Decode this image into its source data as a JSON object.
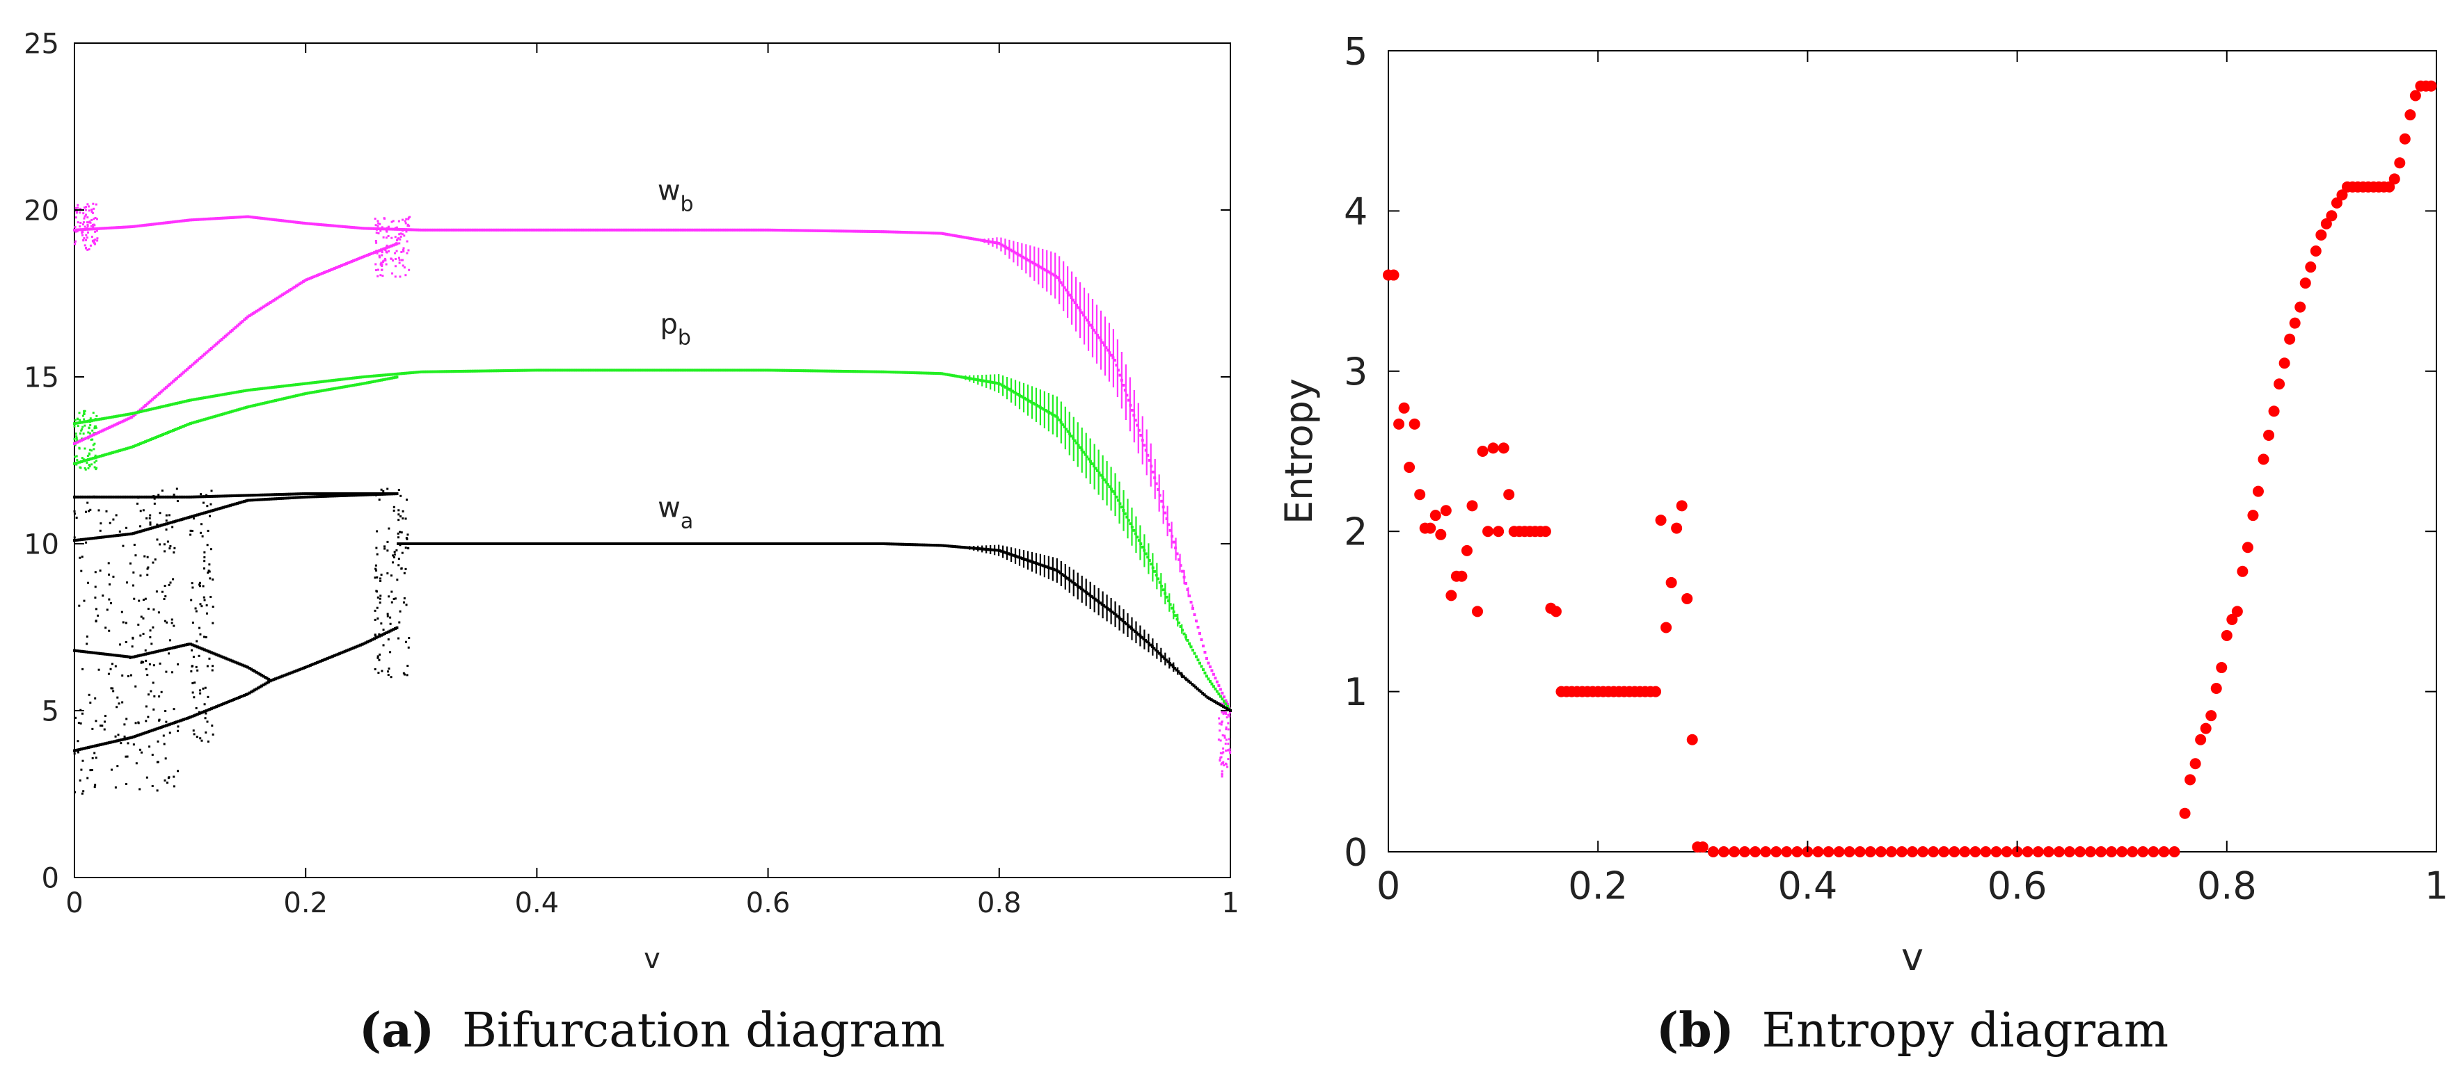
{
  "panel_a": {
    "caption_letter": "(a)",
    "caption_text": "Bifurcation diagram",
    "chart_data": {
      "type": "scatter",
      "title": "",
      "xlabel": "v",
      "ylabel": "",
      "xlim": [
        0,
        1
      ],
      "ylim": [
        0,
        25
      ],
      "xticks": [
        0,
        0.2,
        0.4,
        0.6,
        0.8,
        1
      ],
      "xtick_labels": [
        "0",
        "0.2",
        "0.4",
        "0.6",
        "0.8",
        "1"
      ],
      "yticks": [
        0,
        5,
        10,
        15,
        20,
        25
      ],
      "ytick_labels": [
        "0",
        "5",
        "10",
        "15",
        "20",
        "25"
      ],
      "grid": false,
      "series": [
        {
          "name": "w_b",
          "label_main": "w",
          "label_sub": "b",
          "color": "#ff33ff",
          "label_at": [
            0.52,
            20.3
          ],
          "branches": [
            {
              "x": [
                0,
                0.05,
                0.1,
                0.15,
                0.2,
                0.25,
                0.3,
                0.4,
                0.5,
                0.6,
                0.7,
                0.75,
                0.8,
                0.85,
                0.9,
                0.93,
                0.96,
                0.98,
                1.0
              ],
              "y": [
                19.4,
                19.5,
                19.7,
                19.8,
                19.6,
                19.45,
                19.4,
                19.4,
                19.4,
                19.4,
                19.35,
                19.3,
                19.0,
                18.0,
                15.5,
                12.5,
                9.0,
                6.5,
                5.0
              ]
            },
            {
              "x": [
                0,
                0.05,
                0.1,
                0.15,
                0.2,
                0.25,
                0.28
              ],
              "y": [
                13.0,
                13.8,
                15.3,
                16.8,
                17.9,
                18.6,
                19.0
              ]
            }
          ],
          "spread_from": 0.78,
          "spread_max": 1.3
        },
        {
          "name": "p_b",
          "label_main": "p",
          "label_sub": "b",
          "color": "#22ee22",
          "label_at": [
            0.52,
            16.3
          ],
          "branches": [
            {
              "x": [
                0,
                0.05,
                0.1,
                0.15,
                0.2,
                0.25,
                0.3,
                0.4,
                0.5,
                0.6,
                0.7,
                0.75,
                0.8,
                0.85,
                0.9,
                0.93,
                0.96,
                0.98,
                1.0
              ],
              "y": [
                13.6,
                13.9,
                14.3,
                14.6,
                14.8,
                15.0,
                15.15,
                15.2,
                15.2,
                15.2,
                15.15,
                15.1,
                14.8,
                13.8,
                11.5,
                9.5,
                7.3,
                6.0,
                5.0
              ]
            },
            {
              "x": [
                0,
                0.05,
                0.1,
                0.15,
                0.2,
                0.25,
                0.28
              ],
              "y": [
                12.4,
                12.9,
                13.6,
                14.1,
                14.5,
                14.8,
                15.0
              ]
            }
          ],
          "spread_from": 0.76,
          "spread_max": 1.0
        },
        {
          "name": "w_a",
          "label_main": "w",
          "label_sub": "a",
          "color": "#000000",
          "label_at": [
            0.52,
            10.8
          ],
          "branches": [
            {
              "x": [
                0,
                0.1,
                0.2,
                0.28
              ],
              "y": [
                11.4,
                11.4,
                11.5,
                11.5
              ]
            },
            {
              "x": [
                0,
                0.05,
                0.1,
                0.15,
                0.2,
                0.28
              ],
              "y": [
                10.1,
                10.3,
                10.8,
                11.3,
                11.4,
                11.5
              ]
            },
            {
              "x": [
                0,
                0.05,
                0.1,
                0.15,
                0.17,
                0.2,
                0.25,
                0.28
              ],
              "y": [
                3.8,
                4.2,
                4.8,
                5.5,
                5.9,
                6.3,
                7.0,
                7.5
              ]
            },
            {
              "x": [
                0,
                0.05,
                0.1,
                0.15,
                0.17
              ],
              "y": [
                6.8,
                6.6,
                7.0,
                6.3,
                5.9
              ]
            },
            {
              "x": [
                0.28,
                0.4,
                0.5,
                0.6,
                0.7,
                0.75,
                0.8,
                0.85,
                0.9,
                0.93,
                0.96,
                0.98,
                1.0
              ],
              "y": [
                10.0,
                10.0,
                10.0,
                10.0,
                10.0,
                9.95,
                9.8,
                9.2,
                7.9,
                7.0,
                6.0,
                5.4,
                5.0
              ]
            }
          ],
          "spread_from": 0.76,
          "spread_max": 0.6
        }
      ],
      "chaotic_bands": [
        {
          "x_from": 0.0,
          "x_to": 0.09,
          "y_min": 2.5,
          "y_max": 11.7,
          "color": "#000000"
        },
        {
          "x_from": 0.1,
          "x_to": 0.12,
          "y_min": 4.0,
          "y_max": 11.6,
          "color": "#000000"
        },
        {
          "x_from": 0.26,
          "x_to": 0.29,
          "y_min": 6.0,
          "y_max": 11.8,
          "color": "#000000"
        },
        {
          "x_from": 0.0,
          "x_to": 0.02,
          "y_min": 12.2,
          "y_max": 14.0,
          "color": "#22ee22"
        },
        {
          "x_from": 0.0,
          "x_to": 0.02,
          "y_min": 18.8,
          "y_max": 20.2,
          "color": "#ff33ff"
        },
        {
          "x_from": 0.26,
          "x_to": 0.29,
          "y_min": 18.0,
          "y_max": 19.8,
          "color": "#ff33ff"
        },
        {
          "x_from": 0.99,
          "x_to": 1.0,
          "y_min": 3.0,
          "y_max": 5.3,
          "color": "#ff33ff"
        }
      ]
    }
  },
  "panel_b": {
    "caption_letter": "(b)",
    "caption_text": "Entropy diagram",
    "chart_data": {
      "type": "scatter",
      "title": "",
      "xlabel": "v",
      "ylabel": "Entropy",
      "xlim": [
        0,
        1
      ],
      "ylim": [
        0,
        5
      ],
      "xticks": [
        0,
        0.2,
        0.4,
        0.6,
        0.8,
        1
      ],
      "xtick_labels": [
        "0",
        "0.2",
        "0.4",
        "0.6",
        "0.8",
        "1"
      ],
      "yticks": [
        0,
        1,
        2,
        3,
        4,
        5
      ],
      "ytick_labels": [
        "0",
        "1",
        "2",
        "3",
        "4",
        "5"
      ],
      "grid": false,
      "color": "#ff0000",
      "points": [
        [
          0.0,
          3.6
        ],
        [
          0.005,
          3.6
        ],
        [
          0.01,
          2.67
        ],
        [
          0.015,
          2.77
        ],
        [
          0.02,
          2.4
        ],
        [
          0.025,
          2.67
        ],
        [
          0.03,
          2.23
        ],
        [
          0.035,
          2.02
        ],
        [
          0.04,
          2.02
        ],
        [
          0.045,
          2.1
        ],
        [
          0.05,
          1.98
        ],
        [
          0.055,
          2.13
        ],
        [
          0.06,
          1.6
        ],
        [
          0.065,
          1.72
        ],
        [
          0.07,
          1.72
        ],
        [
          0.075,
          1.88
        ],
        [
          0.08,
          2.16
        ],
        [
          0.085,
          1.5
        ],
        [
          0.09,
          2.5
        ],
        [
          0.095,
          2.0
        ],
        [
          0.1,
          2.52
        ],
        [
          0.105,
          2.0
        ],
        [
          0.11,
          2.52
        ],
        [
          0.115,
          2.23
        ],
        [
          0.12,
          2.0
        ],
        [
          0.125,
          2.0
        ],
        [
          0.13,
          2.0
        ],
        [
          0.135,
          2.0
        ],
        [
          0.14,
          2.0
        ],
        [
          0.145,
          2.0
        ],
        [
          0.15,
          2.0
        ],
        [
          0.155,
          1.52
        ],
        [
          0.16,
          1.5
        ],
        [
          0.165,
          1.0
        ],
        [
          0.17,
          1.0
        ],
        [
          0.175,
          1.0
        ],
        [
          0.18,
          1.0
        ],
        [
          0.185,
          1.0
        ],
        [
          0.19,
          1.0
        ],
        [
          0.195,
          1.0
        ],
        [
          0.2,
          1.0
        ],
        [
          0.205,
          1.0
        ],
        [
          0.21,
          1.0
        ],
        [
          0.215,
          1.0
        ],
        [
          0.22,
          1.0
        ],
        [
          0.225,
          1.0
        ],
        [
          0.23,
          1.0
        ],
        [
          0.235,
          1.0
        ],
        [
          0.24,
          1.0
        ],
        [
          0.245,
          1.0
        ],
        [
          0.25,
          1.0
        ],
        [
          0.255,
          1.0
        ],
        [
          0.26,
          2.07
        ],
        [
          0.265,
          1.4
        ],
        [
          0.27,
          1.68
        ],
        [
          0.275,
          2.02
        ],
        [
          0.28,
          2.16
        ],
        [
          0.285,
          1.58
        ],
        [
          0.29,
          0.7
        ],
        [
          0.295,
          0.03
        ],
        [
          0.3,
          0.03
        ],
        [
          0.31,
          0.0
        ],
        [
          0.32,
          0.0
        ],
        [
          0.33,
          0.0
        ],
        [
          0.34,
          0.0
        ],
        [
          0.35,
          0.0
        ],
        [
          0.36,
          0.0
        ],
        [
          0.37,
          0.0
        ],
        [
          0.38,
          0.0
        ],
        [
          0.39,
          0.0
        ],
        [
          0.4,
          0.0
        ],
        [
          0.41,
          0.0
        ],
        [
          0.42,
          0.0
        ],
        [
          0.43,
          0.0
        ],
        [
          0.44,
          0.0
        ],
        [
          0.45,
          0.0
        ],
        [
          0.46,
          0.0
        ],
        [
          0.47,
          0.0
        ],
        [
          0.48,
          0.0
        ],
        [
          0.49,
          0.0
        ],
        [
          0.5,
          0.0
        ],
        [
          0.51,
          0.0
        ],
        [
          0.52,
          0.0
        ],
        [
          0.53,
          0.0
        ],
        [
          0.54,
          0.0
        ],
        [
          0.55,
          0.0
        ],
        [
          0.56,
          0.0
        ],
        [
          0.57,
          0.0
        ],
        [
          0.58,
          0.0
        ],
        [
          0.59,
          0.0
        ],
        [
          0.6,
          0.0
        ],
        [
          0.61,
          0.0
        ],
        [
          0.62,
          0.0
        ],
        [
          0.63,
          0.0
        ],
        [
          0.64,
          0.0
        ],
        [
          0.65,
          0.0
        ],
        [
          0.66,
          0.0
        ],
        [
          0.67,
          0.0
        ],
        [
          0.68,
          0.0
        ],
        [
          0.69,
          0.0
        ],
        [
          0.7,
          0.0
        ],
        [
          0.71,
          0.0
        ],
        [
          0.72,
          0.0
        ],
        [
          0.73,
          0.0
        ],
        [
          0.74,
          0.0
        ],
        [
          0.75,
          0.0
        ],
        [
          0.76,
          0.24
        ],
        [
          0.765,
          0.45
        ],
        [
          0.77,
          0.55
        ],
        [
          0.775,
          0.7
        ],
        [
          0.78,
          0.77
        ],
        [
          0.785,
          0.85
        ],
        [
          0.79,
          1.02
        ],
        [
          0.795,
          1.15
        ],
        [
          0.8,
          1.35
        ],
        [
          0.805,
          1.45
        ],
        [
          0.81,
          1.5
        ],
        [
          0.815,
          1.75
        ],
        [
          0.82,
          1.9
        ],
        [
          0.825,
          2.1
        ],
        [
          0.83,
          2.25
        ],
        [
          0.835,
          2.45
        ],
        [
          0.84,
          2.6
        ],
        [
          0.845,
          2.75
        ],
        [
          0.85,
          2.92
        ],
        [
          0.855,
          3.05
        ],
        [
          0.86,
          3.2
        ],
        [
          0.865,
          3.3
        ],
        [
          0.87,
          3.4
        ],
        [
          0.875,
          3.55
        ],
        [
          0.88,
          3.65
        ],
        [
          0.885,
          3.75
        ],
        [
          0.89,
          3.85
        ],
        [
          0.895,
          3.92
        ],
        [
          0.9,
          3.97
        ],
        [
          0.905,
          4.05
        ],
        [
          0.91,
          4.1
        ],
        [
          0.915,
          4.15
        ],
        [
          0.92,
          4.15
        ],
        [
          0.925,
          4.15
        ],
        [
          0.93,
          4.15
        ],
        [
          0.935,
          4.15
        ],
        [
          0.94,
          4.15
        ],
        [
          0.945,
          4.15
        ],
        [
          0.95,
          4.15
        ],
        [
          0.955,
          4.15
        ],
        [
          0.96,
          4.2
        ],
        [
          0.965,
          4.3
        ],
        [
          0.97,
          4.45
        ],
        [
          0.975,
          4.6
        ],
        [
          0.98,
          4.72
        ],
        [
          0.985,
          4.78
        ],
        [
          0.99,
          4.78
        ],
        [
          0.995,
          4.78
        ]
      ]
    }
  }
}
